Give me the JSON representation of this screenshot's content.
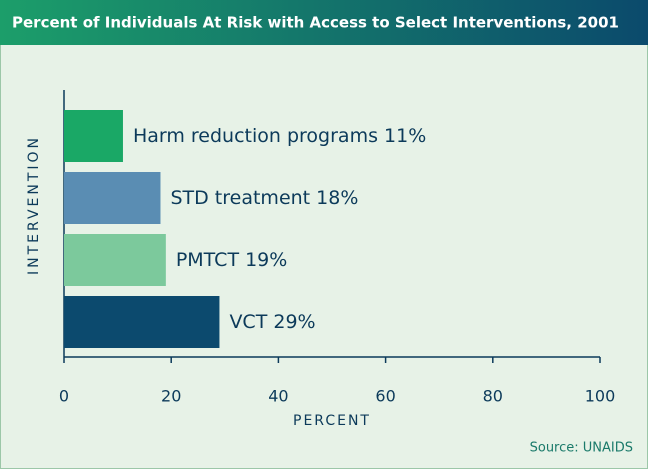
{
  "chart_data": {
    "type": "barh",
    "title": "Percent of Individuals At Risk with Access to Select Interventions, 2001",
    "categories": [
      "Harm reduction programs",
      "STD treatment",
      "PMTCT",
      "VCT"
    ],
    "values": [
      11,
      18,
      19,
      29
    ],
    "value_labels": [
      "11%",
      "18%",
      "19%",
      "29%"
    ],
    "colors": [
      "#1aa866",
      "#5a8db3",
      "#7cc99c",
      "#0c4a6e"
    ],
    "xlim": [
      0,
      100
    ],
    "xticks": [
      0,
      20,
      40,
      60,
      80,
      100
    ],
    "xlabel": "PERCENT",
    "ylabel": "INTERVENTION",
    "source": "Source: UNAIDS"
  }
}
